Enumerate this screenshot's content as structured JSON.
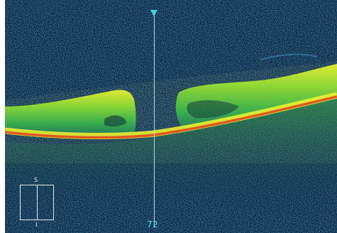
{
  "viewer": {
    "slice_number": "72",
    "orientation": {
      "top": "S",
      "bottom": "I"
    },
    "colors": {
      "background": "#051a3a",
      "noise": "#1f6f8f",
      "tissue": "#2fbf4f",
      "highlight": "#e9f02a",
      "core": "#e0461e",
      "scan_line": "#bfeaf2",
      "marker": "#3fd0e6",
      "label": "#5fd6ea"
    }
  }
}
